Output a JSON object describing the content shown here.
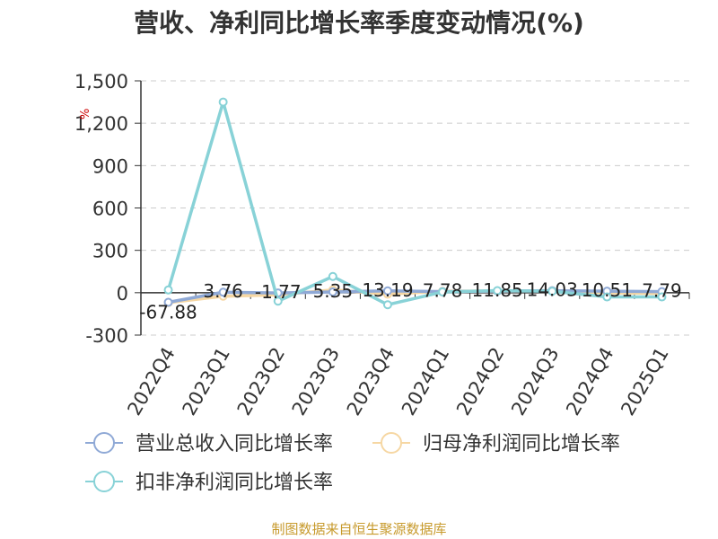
{
  "title": "营收、净利同比增长率季度变动情况(%)",
  "source": "制图数据来自恒生聚源数据库",
  "y_unit_mark": "%",
  "chart_data": {
    "type": "line",
    "title": "营收、净利同比增长率季度变动情况(%)",
    "xlabel": "",
    "ylabel": "",
    "ylim": [
      -300,
      1500
    ],
    "yticks": [
      -300,
      0,
      300,
      600,
      900,
      1200,
      1500
    ],
    "ytick_labels": [
      "-300",
      "0",
      "300",
      "600",
      "900",
      "1,200",
      "1,500"
    ],
    "grid": true,
    "legend_position": "bottom",
    "categories": [
      "2022Q4",
      "2023Q1",
      "2023Q2",
      "2023Q3",
      "2023Q4",
      "2024Q1",
      "2024Q2",
      "2024Q3",
      "2024Q4",
      "2025Q1"
    ],
    "series": [
      {
        "name": "营业总收入同比增长率",
        "color": "#8fa9d6",
        "values": [
          -67.88,
          3.76,
          -1.77,
          5.35,
          13.19,
          7.78,
          11.85,
          14.03,
          10.51,
          7.79
        ],
        "labels": [
          "-67.88",
          "3.76",
          "-1.77",
          "5.35",
          "13.19",
          "7.78",
          "11.85",
          "14.03",
          "10.51",
          "7.79"
        ]
      },
      {
        "name": "归母净利润同比增长率",
        "color": "#f6d7a3",
        "values": [
          -70,
          -25,
          -15,
          20,
          -10,
          10,
          12,
          14,
          0,
          -5
        ]
      },
      {
        "name": "扣非净利润同比增长率",
        "color": "#88d2d7",
        "values": [
          20,
          1350,
          -60,
          115,
          -85,
          5,
          15,
          10,
          -30,
          -30
        ]
      }
    ]
  }
}
